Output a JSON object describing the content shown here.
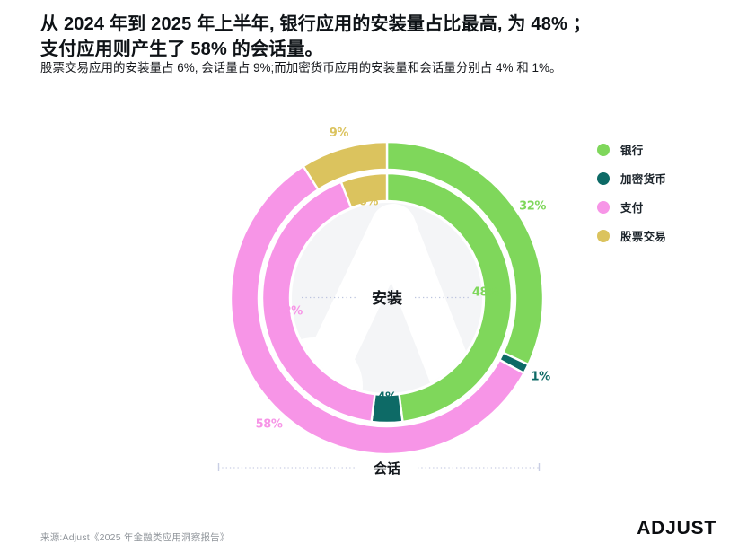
{
  "header": {
    "title_line1": "从 2024 年到 2025 年上半年, 银行应用的安装量占比最高, 为 48% ；",
    "title_line2": "支付应用则产生了 58% 的会话量。",
    "subtitle": "股票交易应用的安装量占 6%, 会话量占 9%;而加密货币应用的安装量和会话量分别占 4% 和 1%。"
  },
  "chart_data": {
    "type": "donut",
    "variant": "double-ring",
    "categories": [
      "银行",
      "加密货币",
      "支付",
      "股票交易"
    ],
    "slugs": [
      "banking",
      "crypto",
      "payments",
      "stock-trading"
    ],
    "colors": [
      "#7FD75B",
      "#0D6A66",
      "#F795E7",
      "#DBC35E"
    ],
    "rings": [
      {
        "name": "安装",
        "position": "inner",
        "values": [
          48,
          4,
          42,
          6
        ]
      },
      {
        "name": "会话",
        "position": "outer",
        "values": [
          32,
          1,
          58,
          9
        ]
      }
    ],
    "value_format": "percent",
    "start_angle_deg": 0,
    "direction": "clockwise",
    "legend_position": "right"
  },
  "footer": {
    "source": "来源:Adjust《2025 年金融类应用洞察报告》",
    "logo_text": "ADJUST"
  }
}
